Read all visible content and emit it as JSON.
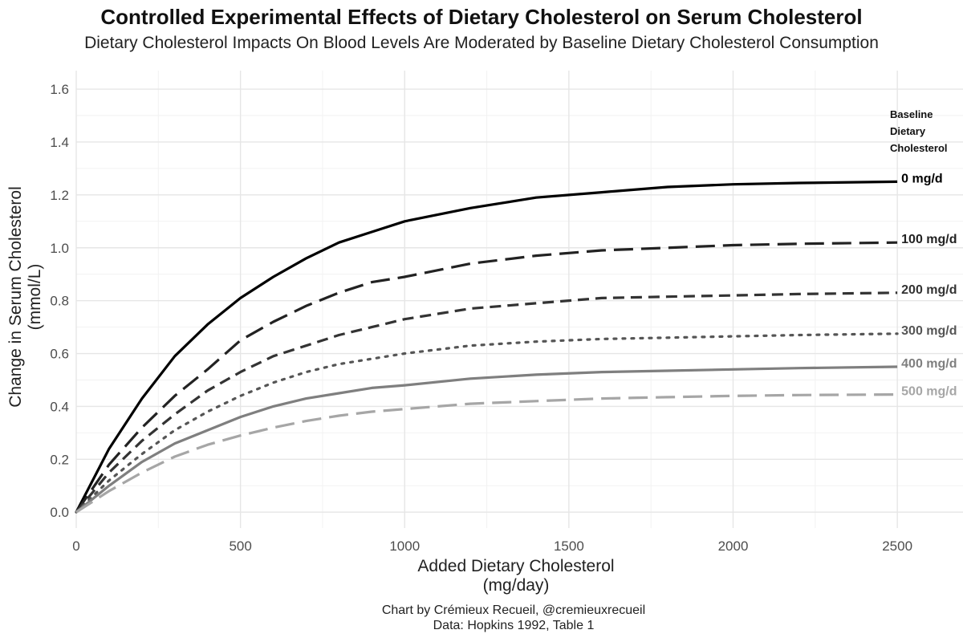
{
  "chart_data": {
    "type": "line",
    "title": "Controlled Experimental Effects of Dietary Cholesterol on Serum Cholesterol",
    "subtitle": "Dietary Cholesterol Impacts On Blood Levels Are Moderated by Baseline Dietary Cholesterol Consumption",
    "xlabel_line1": "Added Dietary Cholesterol",
    "xlabel_line2": "(mg/day)",
    "ylabel_line1": "Change in Serum Cholesterol",
    "ylabel_line2": "(mmol/L)",
    "xlim": [
      0,
      2700
    ],
    "ylim": [
      -0.06,
      1.67
    ],
    "x_ticks": [
      0,
      500,
      1000,
      1500,
      2000,
      2500
    ],
    "x_tick_labels": [
      "0",
      "500",
      "1000",
      "1500",
      "2000",
      "2500"
    ],
    "y_ticks": [
      0.0,
      0.2,
      0.4,
      0.6,
      0.8,
      1.0,
      1.2,
      1.4,
      1.6
    ],
    "y_tick_labels": [
      "0.0",
      "0.2",
      "0.4",
      "0.6",
      "0.8",
      "1.0",
      "1.2",
      "1.4",
      "1.6"
    ],
    "legend_title_lines": [
      "Baseline",
      "Dietary",
      "Cholesterol"
    ],
    "legend_placement": "right, end-of-line labels",
    "grid": true,
    "series": [
      {
        "name": "0 mg/d",
        "color": "#000000",
        "style": "solid",
        "x": [
          0,
          100,
          200,
          300,
          400,
          500,
          600,
          700,
          800,
          900,
          1000,
          1200,
          1400,
          1600,
          1800,
          2000,
          2200,
          2500
        ],
        "y": [
          0.0,
          0.24,
          0.43,
          0.59,
          0.71,
          0.81,
          0.89,
          0.96,
          1.02,
          1.06,
          1.1,
          1.15,
          1.19,
          1.21,
          1.23,
          1.24,
          1.245,
          1.25
        ]
      },
      {
        "name": "100 mg/d",
        "color": "#222222",
        "style": "longdash",
        "x": [
          0,
          100,
          200,
          300,
          400,
          500,
          600,
          700,
          800,
          900,
          1000,
          1200,
          1400,
          1600,
          1800,
          2000,
          2200,
          2500
        ],
        "y": [
          0.0,
          0.18,
          0.32,
          0.44,
          0.54,
          0.65,
          0.72,
          0.78,
          0.83,
          0.87,
          0.89,
          0.94,
          0.97,
          0.99,
          1.0,
          1.01,
          1.015,
          1.02
        ]
      },
      {
        "name": "200 mg/d",
        "color": "#333333",
        "style": "dashed",
        "x": [
          0,
          100,
          200,
          300,
          400,
          500,
          600,
          700,
          800,
          900,
          1000,
          1200,
          1400,
          1600,
          1800,
          2000,
          2200,
          2500
        ],
        "y": [
          0.0,
          0.15,
          0.27,
          0.37,
          0.46,
          0.53,
          0.59,
          0.63,
          0.67,
          0.7,
          0.73,
          0.77,
          0.79,
          0.81,
          0.815,
          0.82,
          0.825,
          0.83
        ]
      },
      {
        "name": "300 mg/d",
        "color": "#555555",
        "style": "dotted",
        "x": [
          0,
          100,
          200,
          300,
          400,
          500,
          600,
          700,
          800,
          900,
          1000,
          1200,
          1400,
          1600,
          1800,
          2000,
          2200,
          2500
        ],
        "y": [
          0.0,
          0.12,
          0.22,
          0.31,
          0.38,
          0.44,
          0.49,
          0.53,
          0.56,
          0.58,
          0.6,
          0.63,
          0.645,
          0.655,
          0.66,
          0.665,
          0.67,
          0.675
        ]
      },
      {
        "name": "400 mg/d",
        "color": "#7f7f7f",
        "style": "solid",
        "x": [
          0,
          100,
          200,
          300,
          400,
          500,
          600,
          700,
          800,
          900,
          1000,
          1200,
          1400,
          1600,
          1800,
          2000,
          2200,
          2500
        ],
        "y": [
          0.0,
          0.1,
          0.19,
          0.26,
          0.31,
          0.36,
          0.4,
          0.43,
          0.45,
          0.47,
          0.48,
          0.505,
          0.52,
          0.53,
          0.535,
          0.54,
          0.545,
          0.55
        ]
      },
      {
        "name": "500 mg/d",
        "color": "#a6a6a6",
        "style": "longdash",
        "x": [
          0,
          100,
          200,
          300,
          400,
          500,
          600,
          700,
          800,
          900,
          1000,
          1200,
          1400,
          1600,
          1800,
          2000,
          2200,
          2500
        ],
        "y": [
          0.0,
          0.08,
          0.15,
          0.21,
          0.255,
          0.29,
          0.32,
          0.345,
          0.365,
          0.38,
          0.39,
          0.41,
          0.42,
          0.43,
          0.435,
          0.44,
          0.443,
          0.445
        ]
      }
    ]
  },
  "caption": {
    "line1": "Chart by Crémieux Recueil, @cremieuxrecueil",
    "line2": "Data: Hopkins 1992, Table 1"
  }
}
